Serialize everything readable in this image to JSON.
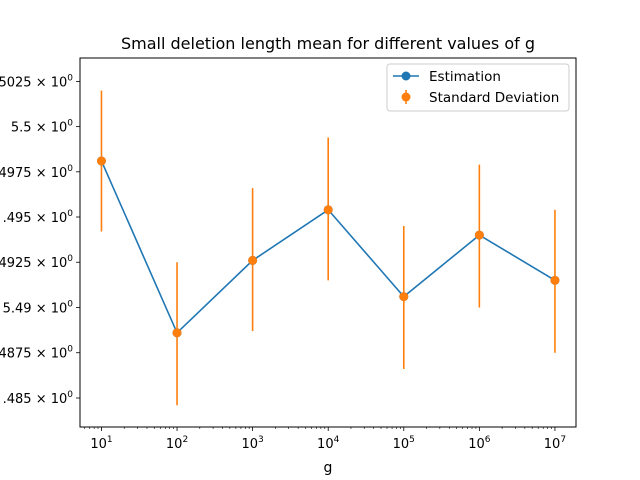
{
  "chart_data": {
    "type": "line",
    "title": "Small deletion length mean for different values of g",
    "xlabel": "g",
    "ylabel": "",
    "x_scale": "log",
    "y_scale": "log",
    "x": [
      10,
      100,
      1000,
      10000,
      100000,
      1000000,
      10000000
    ],
    "x_tick_labels": [
      {
        "base": "10",
        "exp": "1"
      },
      {
        "base": "10",
        "exp": "2"
      },
      {
        "base": "10",
        "exp": "3"
      },
      {
        "base": "10",
        "exp": "4"
      },
      {
        "base": "10",
        "exp": "5"
      },
      {
        "base": "10",
        "exp": "6"
      },
      {
        "base": "10",
        "exp": "7"
      }
    ],
    "y_ticks": [
      5.485,
      5.4875,
      5.49,
      5.4925,
      5.495,
      5.4975,
      5.5,
      5.5025
    ],
    "y_tick_labels": [
      {
        "mant": ".485",
        "base": " × 10",
        "exp": "0"
      },
      {
        "mant": "4875",
        "base": " × 10",
        "exp": "0"
      },
      {
        "mant": "5.49",
        "base": " × 10",
        "exp": "0"
      },
      {
        "mant": "4925",
        "base": " × 10",
        "exp": "0"
      },
      {
        "mant": ".495",
        "base": " × 10",
        "exp": "0"
      },
      {
        "mant": "4975",
        "base": " × 10",
        "exp": "0"
      },
      {
        "mant": "5.5",
        "base": " × 10",
        "exp": "0"
      },
      {
        "mant": "5025",
        "base": " × 10",
        "exp": "0"
      }
    ],
    "xlim": [
      5.2,
      19000000
    ],
    "ylim": [
      5.4834,
      5.5038
    ],
    "series": [
      {
        "name": "Estimation",
        "color": "#1f77b4",
        "values": [
          5.4981,
          5.4886,
          5.4926,
          5.4954,
          5.4906,
          5.494,
          5.4915
        ]
      },
      {
        "name": "Standard Deviation",
        "color": "#ff7f0e",
        "error_low": [
          5.4942,
          5.4846,
          5.4887,
          5.4915,
          5.4866,
          5.49,
          5.4875
        ],
        "error_high": [
          5.502,
          5.4925,
          5.4966,
          5.4994,
          5.4945,
          5.4979,
          5.4954
        ]
      }
    ],
    "grid": false,
    "legend_position": "top-right"
  }
}
